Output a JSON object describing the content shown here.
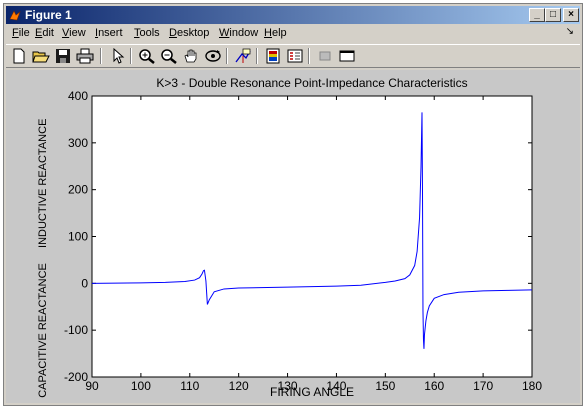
{
  "window": {
    "title": "Figure 1",
    "controls": {
      "minimize": "_",
      "maximize": "□",
      "close": "×"
    }
  },
  "menu": {
    "items": [
      "File",
      "Edit",
      "View",
      "Insert",
      "Tools",
      "Desktop",
      "Window",
      "Help"
    ],
    "overflow_arrow": "↘"
  },
  "toolbar": {
    "icons": [
      "new-figure-icon",
      "open-icon",
      "save-icon",
      "print-icon",
      "arrow-pointer-icon",
      "zoom-in-icon",
      "zoom-out-icon",
      "pan-hand-icon",
      "rotate-3d-icon",
      "data-cursor-icon",
      "colorbar-icon",
      "legend-icon",
      "hide-plot-tools-icon",
      "show-plot-tools-icon"
    ]
  },
  "chart_data": {
    "type": "line",
    "title": "K>3 - Double Resonance Point-Impedance Characteristics",
    "xlabel": "FIRING ANGLE",
    "ylabel_upper": "INDUCTIVE REACTANCE",
    "ylabel_lower": "CAPACITIVE REACTANCE",
    "xlim": [
      90,
      180
    ],
    "ylim": [
      -200,
      400
    ],
    "xticks": [
      90,
      100,
      110,
      120,
      130,
      140,
      150,
      160,
      170,
      180
    ],
    "yticks": [
      -200,
      -100,
      0,
      100,
      200,
      300,
      400
    ],
    "grid": false,
    "series": [
      {
        "color": "#0000ff",
        "x": [
          90,
          100,
          105,
          109,
          111,
          112,
          112.5,
          112.8,
          113,
          113.3,
          113.6,
          114,
          115,
          117,
          120,
          130,
          140,
          145,
          150,
          152,
          154,
          155,
          156,
          156.5,
          157,
          157.3,
          157.5,
          157.6,
          157.7,
          157.8,
          157.9,
          158,
          158.3,
          158.6,
          159,
          160,
          162,
          165,
          170,
          175,
          180
        ],
        "values": [
          0,
          1,
          2,
          4,
          7,
          12,
          20,
          27,
          28,
          5,
          -45,
          -35,
          -18,
          -12,
          -10,
          -8,
          -6,
          -4,
          2,
          5,
          10,
          18,
          38,
          68,
          140,
          250,
          365,
          200,
          -60,
          -120,
          -140,
          -110,
          -80,
          -62,
          -48,
          -32,
          -24,
          -19,
          -16,
          -15,
          -14
        ]
      }
    ]
  }
}
